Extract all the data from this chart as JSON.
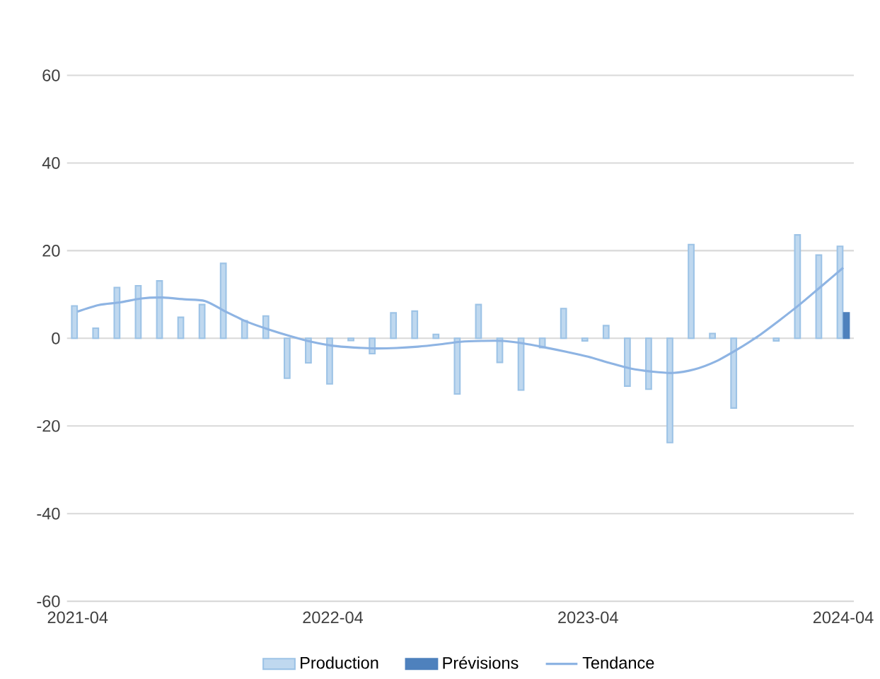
{
  "chart_data": {
    "type": "bar",
    "categories": [
      "2021-04",
      null,
      null,
      null,
      null,
      null,
      null,
      null,
      null,
      null,
      null,
      null,
      "2022-04",
      null,
      null,
      null,
      null,
      null,
      null,
      null,
      null,
      null,
      null,
      null,
      "2023-04",
      null,
      null,
      null,
      null,
      null,
      null,
      null,
      null,
      null,
      null,
      null,
      "2024-04"
    ],
    "series": [
      {
        "name": "Production",
        "color": "#9dc3e6",
        "values": [
          7.4,
          2.3,
          11.6,
          12.0,
          13.1,
          4.8,
          7.7,
          17.1,
          4.0,
          5.1,
          -9.1,
          -5.6,
          -10.4,
          -0.5,
          -3.5,
          5.8,
          6.2,
          0.9,
          -12.7,
          7.7,
          -5.5,
          -11.8,
          -2.1,
          6.8,
          -0.6,
          2.9,
          -10.9,
          -11.6,
          -23.8,
          21.4,
          1.1,
          -15.9,
          0,
          -0.6,
          23.6,
          19.0,
          21.0
        ]
      },
      {
        "name": "Prévisions",
        "color": "#4e81bd",
        "values": [
          null,
          null,
          null,
          null,
          null,
          null,
          null,
          null,
          null,
          null,
          null,
          null,
          null,
          null,
          null,
          null,
          null,
          null,
          null,
          null,
          null,
          null,
          null,
          null,
          null,
          null,
          null,
          null,
          null,
          null,
          null,
          null,
          null,
          null,
          null,
          null,
          5.8
        ]
      },
      {
        "name": "Tendance",
        "type": "line",
        "color": "#8eb4e3",
        "values": [
          6.1,
          7.6,
          8.2,
          9.1,
          9.3,
          8.9,
          8.5,
          6.0,
          3.7,
          2.0,
          0.5,
          -0.8,
          -1.7,
          -2.1,
          -2.3,
          -2.2,
          -1.9,
          -1.4,
          -0.8,
          -0.6,
          -0.6,
          -1.2,
          -2.1,
          -3.1,
          -4.2,
          -5.6,
          -6.9,
          -7.6,
          -7.9,
          -7.1,
          -5.3,
          -2.6,
          0.5,
          4.1,
          7.9,
          12.0,
          16.1
        ]
      }
    ],
    "ylim": [
      -60,
      60
    ],
    "yticks": [
      -60,
      -40,
      -20,
      0,
      20,
      40,
      60
    ],
    "grid": "y",
    "legend": "bottom"
  }
}
